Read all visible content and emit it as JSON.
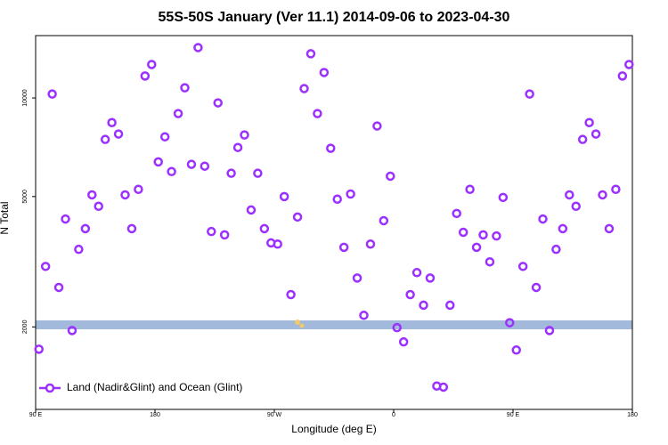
{
  "chart_data": {
    "type": "scatter",
    "title": "55S-50S January (Ver 11.1)   2014-09-06 to 2023-04-30",
    "x_label": "Longitude (deg E)",
    "y_label": "N Total",
    "log_y": true,
    "legend": "lower left",
    "xlim": [
      90,
      540
    ],
    "ylim": [
      1120,
      15500
    ],
    "xticks": [
      {
        "value": 90,
        "label": "90 E"
      },
      180,
      {
        "value": 270,
        "label": "90 W"
      },
      {
        "value": 360,
        "label": "0"
      },
      {
        "value": 450,
        "label": "90 E"
      },
      {
        "value": 540,
        "label": "180"
      }
    ],
    "yticks": [
      2000,
      5000,
      10000
    ],
    "series": [
      {
        "name": "Land (Nadir&Glint) and Ocean (Glint)",
        "color": "#9b30ff",
        "x": [
          92.5,
          97.5,
          102.5,
          107.5,
          112.5,
          117.5,
          122.5,
          127.5,
          132.5,
          137.5,
          142.5,
          147.5,
          152.5,
          157.5,
          162.5,
          167.5,
          172.5,
          177.5,
          182.5,
          187.5,
          192.5,
          197.5,
          202.5,
          207.5,
          212.5,
          217.5,
          222.5,
          227.5,
          232.5,
          237.5,
          242.5,
          247.5,
          252.5,
          257.5,
          262.5,
          267.5,
          272.5,
          277.5,
          282.5,
          287.5,
          292.5,
          297.5,
          302.5,
          307.5,
          312.5,
          317.5,
          322.5,
          327.5,
          332.5,
          337.5,
          342.5,
          347.5,
          352.5,
          357.5,
          362.5,
          367.5,
          372.5,
          377.5,
          382.5,
          387.5,
          392.5,
          397.5,
          402.5,
          407.5,
          412.5,
          417.5,
          422.5,
          427.5,
          432.5,
          437.5,
          442.5,
          447.5,
          452.5,
          457.5,
          462.5,
          467.5,
          472.5,
          477.5,
          482.5,
          487.5,
          492.5,
          497.5,
          502.5,
          507.5,
          512.5,
          517.5,
          522.5,
          527.5,
          532.5,
          537.5
        ],
        "values": [
          1710,
          3060,
          10280,
          2640,
          4270,
          1950,
          3450,
          3990,
          5060,
          4670,
          7470,
          8410,
          7760,
          5060,
          3990,
          5260,
          11670,
          12650,
          6380,
          7610,
          5960,
          8960,
          10740,
          6270,
          14250,
          6190,
          3910,
          9660,
          3820,
          5890,
          7060,
          7710,
          4550,
          5890,
          3990,
          3610,
          3580,
          5000,
          2510,
          4330,
          10680,
          13640,
          8960,
          11960,
          7020,
          4910,
          3500,
          5090,
          2820,
          2170,
          3580,
          8210,
          4220,
          5770,
          1990,
          1800,
          2510,
          2930,
          2330,
          2820,
          1320,
          1310,
          2330,
          4440,
          3890,
          5260,
          3500,
          3820,
          3160,
          3790,
          4970,
          2060,
          1700,
          3060,
          10280,
          2640,
          4270,
          1950,
          3450,
          3990,
          5060,
          4670,
          7470,
          8410,
          7760,
          5060,
          3990,
          5260,
          11670,
          12650
        ]
      }
    ]
  }
}
